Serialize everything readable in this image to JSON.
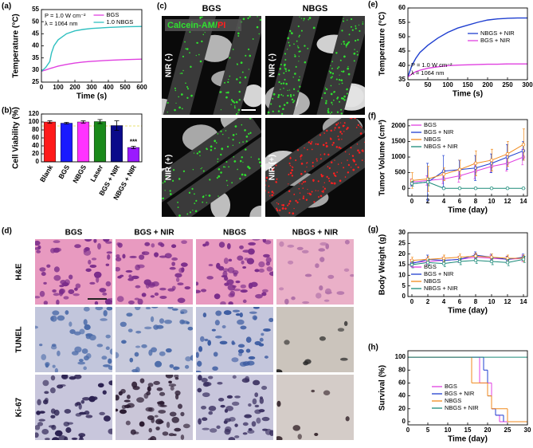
{
  "chart_data": [
    {
      "type": "line",
      "panel_label": "(a)",
      "x_label": "Time (s)",
      "y_label": "Temperature (°C)",
      "x": [
        0,
        25,
        50,
        60,
        75,
        100,
        150,
        200,
        250,
        300,
        400,
        500,
        600
      ],
      "series": [
        {
          "name": "BGS",
          "color": "#e040e0",
          "values": [
            29.5,
            30,
            30.6,
            30.8,
            31.1,
            31.6,
            32.3,
            32.9,
            33.3,
            33.6,
            34,
            34.3,
            34.5
          ]
        },
        {
          "name": "1.0 NBGS",
          "color": "#30c0c0",
          "values": [
            29.5,
            31,
            33.5,
            37,
            40,
            42.5,
            45,
            46.2,
            46.8,
            47.2,
            47.6,
            47.9,
            48
          ]
        }
      ],
      "xlim": [
        0,
        600
      ],
      "xticks": [
        0,
        100,
        200,
        300,
        400,
        500,
        600
      ],
      "ylim": [
        25,
        55
      ],
      "yticks": [
        25,
        30,
        35,
        40,
        45,
        50,
        55
      ],
      "legend": "upper right",
      "annotations": [
        "P = 1.0 W cm⁻²",
        "λ = 1064 nm"
      ],
      "annotation_position": "upper left"
    },
    {
      "type": "bar",
      "panel_label": "(b)",
      "y_label": "Cell Viability (%)",
      "categories": [
        "Blank",
        "BGS",
        "NBGS",
        "Laser",
        "BGS + NIR",
        "NBGS + NIR"
      ],
      "values": [
        100,
        97,
        100,
        101,
        91,
        36
      ],
      "errors": [
        3,
        2,
        3,
        5,
        12,
        3
      ],
      "colors": [
        "#ff1a1a",
        "#1a1aff",
        "#ff33ff",
        "#1a8a1a",
        "#0a0a8a",
        "#9a1aff"
      ],
      "ylim": [
        0,
        120
      ],
      "yticks": [
        0,
        20,
        40,
        60,
        80,
        100,
        120
      ],
      "threshold": 90,
      "significance": "***"
    },
    {
      "type": "line",
      "panel_label": "(e)",
      "x_label": "Time (s)",
      "y_label": "Temperature (°C)",
      "x": [
        0,
        10,
        20,
        30,
        50,
        75,
        100,
        125,
        150,
        175,
        200,
        225,
        250,
        275,
        300
      ],
      "series": [
        {
          "name": "NBGS + NIR",
          "color": "#1f3fd0",
          "values": [
            36,
            40,
            42.5,
            44.5,
            47,
            49.5,
            51.5,
            53,
            54,
            55,
            55.8,
            56.2,
            56.4,
            56.5,
            56.5
          ]
        },
        {
          "name": "BGS + NIR",
          "color": "#e040e0",
          "values": [
            36,
            37,
            37.8,
            38.3,
            39,
            39.5,
            39.9,
            40.1,
            40.2,
            40.3,
            40.4,
            40.4,
            40.5,
            40.5,
            40.5
          ]
        }
      ],
      "xlim": [
        0,
        300
      ],
      "xticks": [
        0,
        50,
        100,
        150,
        200,
        250,
        300
      ],
      "ylim": [
        35,
        60
      ],
      "yticks": [
        35,
        40,
        45,
        50,
        55,
        60
      ],
      "legend": "center right",
      "annotations": [
        "P = 1.0 W cm⁻²",
        "λ = 1064 nm"
      ],
      "annotation_position": "lower left"
    },
    {
      "type": "line",
      "panel_label": "(f)",
      "x_label": "Time (day)",
      "y_label": "Tumor Volume (cm³)",
      "markers": true,
      "x": [
        0,
        2,
        4,
        6,
        8,
        10,
        12,
        14
      ],
      "series": [
        {
          "name": "BGS",
          "color": "#e040e0",
          "values": [
            200,
            250,
            300,
            400,
            550,
            700,
            800,
            1000
          ],
          "errors": [
            100,
            150,
            150,
            200,
            250,
            200,
            250,
            250
          ]
        },
        {
          "name": "BGS + NIR",
          "color": "#1f3fd0",
          "values": [
            150,
            200,
            550,
            600,
            650,
            800,
            1000,
            1200
          ],
          "errors": [
            80,
            600,
            500,
            300,
            400,
            300,
            400,
            300
          ]
        },
        {
          "name": "NBGS",
          "color": "#f08a1c",
          "values": [
            250,
            300,
            450,
            600,
            800,
            900,
            1100,
            1400
          ],
          "errors": [
            250,
            400,
            200,
            300,
            400,
            350,
            400,
            500
          ]
        },
        {
          "name": "NBGS + NIR",
          "color": "#1a8a78",
          "values": [
            150,
            200,
            0,
            0,
            0,
            0,
            0,
            0
          ],
          "errors": [
            80,
            120,
            0,
            0,
            0,
            0,
            0,
            0
          ]
        }
      ],
      "xlim": [
        -0.5,
        14.5
      ],
      "xticks": [
        0,
        2,
        4,
        6,
        8,
        10,
        12,
        14
      ],
      "ylim": [
        -250,
        2200
      ],
      "yticks": [
        0,
        500,
        1000,
        1500,
        2000
      ],
      "legend": "upper left"
    },
    {
      "type": "line",
      "panel_label": "(g)",
      "x_label": "Time (day)",
      "y_label": "Body Weight (g)",
      "markers": true,
      "x": [
        0,
        2,
        4,
        6,
        8,
        10,
        12,
        14
      ],
      "series": [
        {
          "name": "BGS",
          "color": "#e040e0",
          "values": [
            16,
            16.5,
            17,
            17.5,
            18.5,
            18,
            17.5,
            18
          ],
          "errors": [
            1.5,
            1.5,
            1.5,
            1.5,
            1.5,
            1.5,
            1.5,
            1.5
          ]
        },
        {
          "name": "BGS + NIR",
          "color": "#1f3fd0",
          "values": [
            15.5,
            17.5,
            17,
            17.5,
            19.5,
            18.5,
            17.5,
            18.5
          ],
          "errors": [
            1.5,
            2,
            1.5,
            1.5,
            1.5,
            1.5,
            1.5,
            1.5
          ]
        },
        {
          "name": "NBGS",
          "color": "#f08a1c",
          "values": [
            17,
            17.5,
            18,
            18.5,
            19,
            18.5,
            18,
            18
          ],
          "errors": [
            1.5,
            1.5,
            1.5,
            1.5,
            1.5,
            1.5,
            1.5,
            1.5
          ]
        },
        {
          "name": "NBGS + NIR",
          "color": "#1a8a78",
          "values": [
            15,
            16,
            15.5,
            16.5,
            17,
            16.5,
            16,
            17.5
          ],
          "errors": [
            1.5,
            1.5,
            1.5,
            1.5,
            1.5,
            1.5,
            1.5,
            1.5
          ]
        }
      ],
      "xlim": [
        -0.5,
        14.5
      ],
      "xticks": [
        0,
        2,
        4,
        6,
        8,
        10,
        12,
        14
      ],
      "ylim": [
        0,
        30
      ],
      "yticks": [
        0,
        5,
        10,
        15,
        20,
        25,
        30
      ],
      "legend": "lower left"
    },
    {
      "type": "step",
      "panel_label": "(h)",
      "x_label": "Time (day)",
      "y_label": "Survival (%)",
      "series": [
        {
          "name": "BGS",
          "color": "#e040e0",
          "x": [
            0,
            18,
            21,
            22,
            23,
            30
          ],
          "values": [
            100,
            60,
            20,
            10,
            0,
            0
          ]
        },
        {
          "name": "BGS + NIR",
          "color": "#1f3fd0",
          "x": [
            0,
            19,
            20,
            21,
            22,
            24
          ],
          "values": [
            100,
            80,
            40,
            20,
            10,
            0
          ]
        },
        {
          "name": "NBGS",
          "color": "#f08a1c",
          "x": [
            0,
            16,
            20,
            21,
            25,
            30
          ],
          "values": [
            100,
            60,
            40,
            20,
            0,
            0
          ]
        },
        {
          "name": "NBGS + NIR",
          "color": "#1a8a78",
          "x": [
            0,
            30
          ],
          "values": [
            100,
            100
          ]
        }
      ],
      "xlim": [
        0,
        30
      ],
      "xticks": [
        0,
        5,
        10,
        15,
        20,
        25,
        30
      ],
      "ylim": [
        -5,
        110
      ],
      "yticks": [
        0,
        20,
        40,
        60,
        80,
        100
      ],
      "legend": "lower center"
    }
  ],
  "panel_c": {
    "panel_label": "(c)",
    "columns": [
      "BGS",
      "NBGS"
    ],
    "rows": [
      "NIR (-)",
      "NIR (+)"
    ],
    "stain_green": "Calcein-AM/",
    "stain_red": "PI"
  },
  "panel_d": {
    "panel_label": "(d)",
    "columns": [
      "BGS",
      "BGS + NIR",
      "NBGS",
      "NBGS + NIR"
    ],
    "rows": [
      "H&E",
      "TUNEL",
      "Ki-67"
    ]
  }
}
